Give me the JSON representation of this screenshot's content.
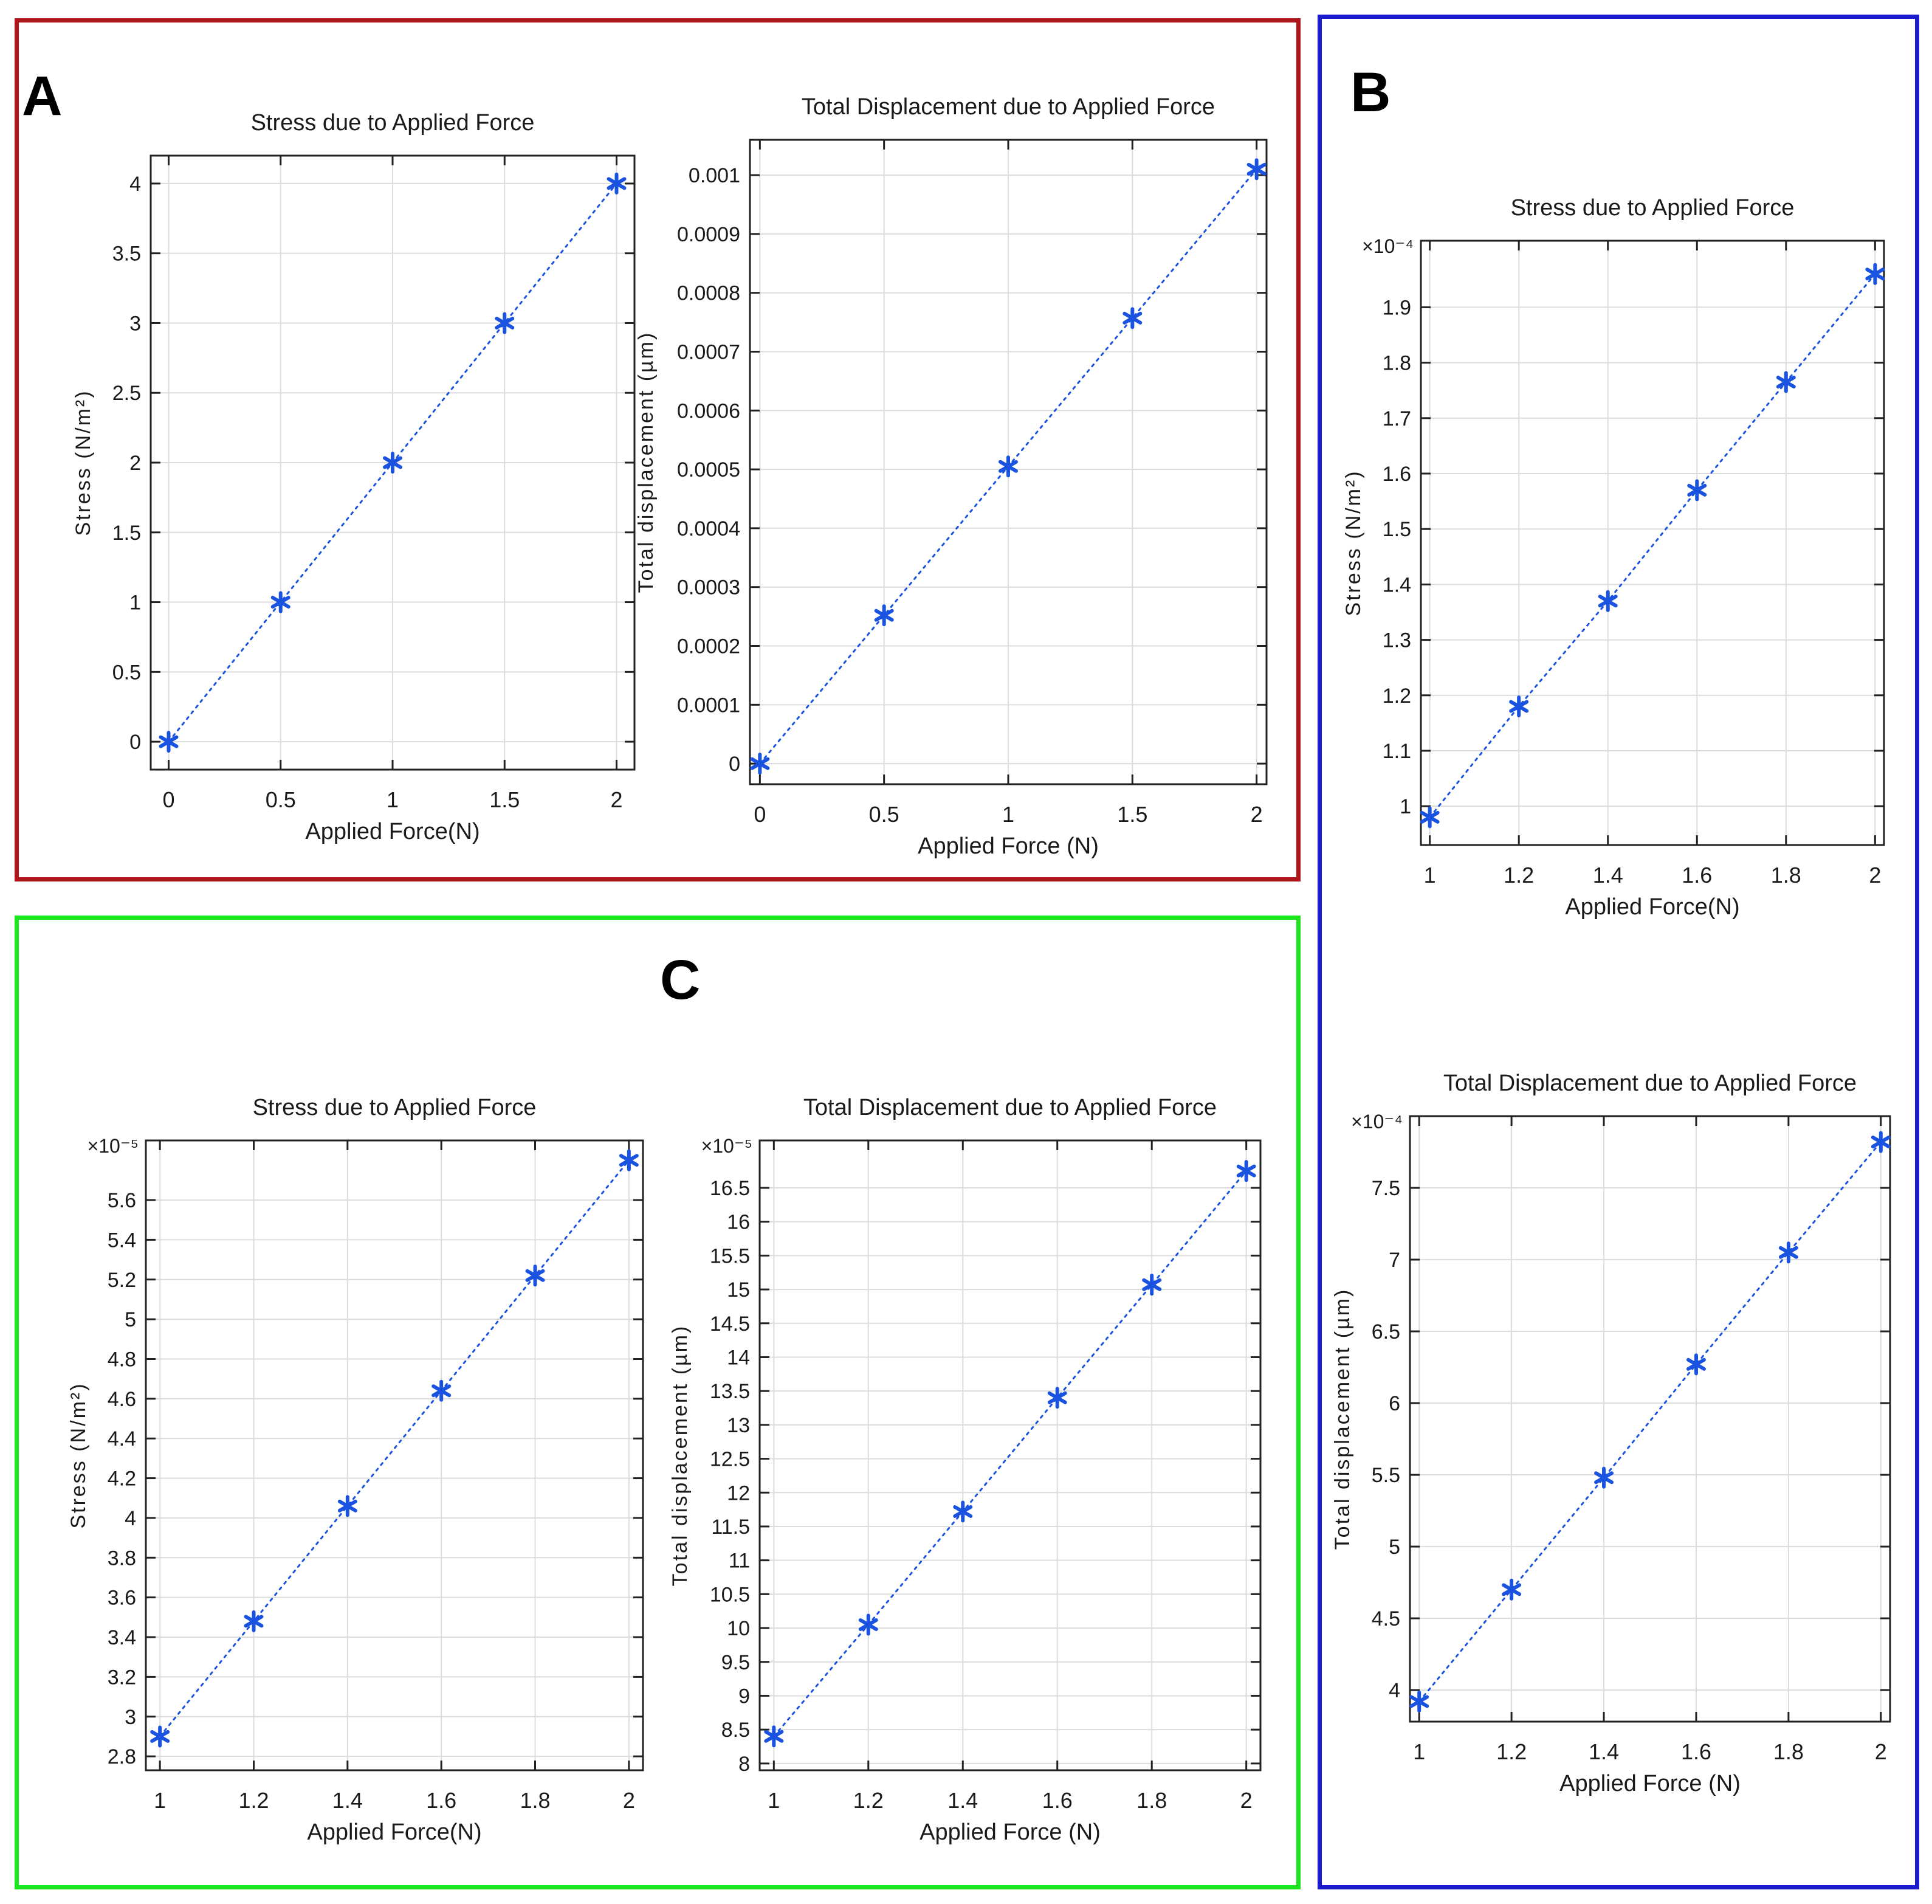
{
  "colors": {
    "panel_a": "#b0151c",
    "panel_b": "#1c1ccc",
    "panel_c": "#1ee61e",
    "series": "#1a53e0"
  },
  "panels": {
    "a": "A",
    "b": "B",
    "c": "C"
  },
  "chart_data": [
    {
      "id": "a1",
      "type": "line",
      "marker": "asterisk",
      "line_style": "dotted",
      "title": "Stress due to Applied Force",
      "xlabel": "Applied Force(N)",
      "ylabel": "Stress (N/m²)",
      "exponent": "",
      "x": [
        0,
        0.5,
        1,
        1.5,
        2
      ],
      "y": [
        0,
        1,
        2,
        3,
        4
      ],
      "xlim": [
        -0.08,
        2.08
      ],
      "ylim": [
        -0.2,
        4.2
      ],
      "xticks": [
        0,
        0.5,
        1,
        1.5,
        2
      ],
      "xtick_labels": [
        "0",
        "0.5",
        "1",
        "1.5",
        "2"
      ],
      "yticks": [
        0,
        0.5,
        1,
        1.5,
        2,
        2.5,
        3,
        3.5,
        4
      ],
      "ytick_labels": [
        "0",
        "0.5",
        "1",
        "1.5",
        "2",
        "2.5",
        "3",
        "3.5",
        "4"
      ],
      "grid": true
    },
    {
      "id": "a2",
      "type": "line",
      "marker": "asterisk",
      "line_style": "dotted",
      "title": "Total Displacement due to Applied Force",
      "xlabel": "Applied Force (N)",
      "ylabel": "Total displacement (µm)",
      "exponent": "",
      "x": [
        0,
        0.5,
        1,
        1.5,
        2
      ],
      "y": [
        0,
        0.000252,
        0.000505,
        0.000757,
        0.00101
      ],
      "xlim": [
        -0.04,
        2.04
      ],
      "ylim": [
        -3.5e-05,
        0.00106
      ],
      "xticks": [
        0,
        0.5,
        1,
        1.5,
        2
      ],
      "xtick_labels": [
        "0",
        "0.5",
        "1",
        "1.5",
        "2"
      ],
      "yticks": [
        0,
        0.0001,
        0.0002,
        0.0003,
        0.0004,
        0.0005,
        0.0006,
        0.0007,
        0.0008,
        0.0009,
        0.001
      ],
      "ytick_labels": [
        "0",
        "0.0001",
        "0.0002",
        "0.0003",
        "0.0004",
        "0.0005",
        "0.0006",
        "0.0007",
        "0.0008",
        "0.0009",
        "0.001"
      ],
      "grid": true
    },
    {
      "id": "b1",
      "type": "line",
      "marker": "asterisk",
      "line_style": "dotted",
      "title": "Stress due to Applied Force",
      "xlabel": "Applied Force(N)",
      "ylabel": "Stress (N/m²)",
      "exponent": "×10⁻⁴",
      "x": [
        1,
        1.2,
        1.4,
        1.6,
        1.8,
        2
      ],
      "y": [
        0.98,
        1.18,
        1.37,
        1.57,
        1.765,
        1.96
      ],
      "xlim": [
        0.98,
        2.02
      ],
      "ylim": [
        0.93,
        2.02
      ],
      "xticks": [
        1,
        1.2,
        1.4,
        1.6,
        1.8,
        2
      ],
      "xtick_labels": [
        "1",
        "1.2",
        "1.4",
        "1.6",
        "1.8",
        "2"
      ],
      "yticks": [
        1,
        1.1,
        1.2,
        1.3,
        1.4,
        1.5,
        1.6,
        1.7,
        1.8,
        1.9
      ],
      "ytick_labels": [
        "1",
        "1.1",
        "1.2",
        "1.3",
        "1.4",
        "1.5",
        "1.6",
        "1.7",
        "1.8",
        "1.9"
      ],
      "grid": true
    },
    {
      "id": "b2",
      "type": "line",
      "marker": "asterisk",
      "line_style": "dotted",
      "title": "Total Displacement due to Applied Force",
      "xlabel": "Applied Force (N)",
      "ylabel": "Total displacement (µm)",
      "exponent": "×10⁻⁴",
      "x": [
        1,
        1.2,
        1.4,
        1.6,
        1.8,
        2
      ],
      "y": [
        3.92,
        4.7,
        5.48,
        6.27,
        7.05,
        7.82
      ],
      "xlim": [
        0.98,
        2.02
      ],
      "ylim": [
        3.78,
        8.0
      ],
      "xticks": [
        1,
        1.2,
        1.4,
        1.6,
        1.8,
        2
      ],
      "xtick_labels": [
        "1",
        "1.2",
        "1.4",
        "1.6",
        "1.8",
        "2"
      ],
      "yticks": [
        4,
        4.5,
        5,
        5.5,
        6,
        6.5,
        7,
        7.5
      ],
      "ytick_labels": [
        "4",
        "4.5",
        "5",
        "5.5",
        "6",
        "6.5",
        "7",
        "7.5"
      ],
      "grid": true
    },
    {
      "id": "c1",
      "type": "line",
      "marker": "asterisk",
      "line_style": "dotted",
      "title": "Stress due to Applied Force",
      "xlabel": "Applied Force(N)",
      "ylabel": "Stress (N/m²)",
      "exponent": "×10⁻⁵",
      "x": [
        1,
        1.2,
        1.4,
        1.6,
        1.8,
        2
      ],
      "y": [
        2.9,
        3.48,
        4.06,
        4.64,
        5.22,
        5.8
      ],
      "xlim": [
        0.97,
        2.03
      ],
      "ylim": [
        2.73,
        5.9
      ],
      "xticks": [
        1,
        1.2,
        1.4,
        1.6,
        1.8,
        2
      ],
      "xtick_labels": [
        "1",
        "1.2",
        "1.4",
        "1.6",
        "1.8",
        "2"
      ],
      "yticks": [
        2.8,
        3,
        3.2,
        3.4,
        3.6,
        3.8,
        4,
        4.2,
        4.4,
        4.6,
        4.8,
        5,
        5.2,
        5.4,
        5.6
      ],
      "ytick_labels": [
        "2.8",
        "3",
        "3.2",
        "3.4",
        "3.6",
        "3.8",
        "4",
        "4.2",
        "4.4",
        "4.6",
        "4.8",
        "5",
        "5.2",
        "5.4",
        "5.6"
      ],
      "grid": true
    },
    {
      "id": "c2",
      "type": "line",
      "marker": "asterisk",
      "line_style": "dotted",
      "title": "Total Displacement due to Applied Force",
      "xlabel": "Applied Force (N)",
      "ylabel": "Total displacement (µm)",
      "exponent": "×10⁻⁵",
      "x": [
        1,
        1.2,
        1.4,
        1.6,
        1.8,
        2
      ],
      "y": [
        8.4,
        10.05,
        11.72,
        13.4,
        15.07,
        16.75
      ],
      "xlim": [
        0.97,
        2.03
      ],
      "ylim": [
        7.9,
        17.2
      ],
      "xticks": [
        1,
        1.2,
        1.4,
        1.6,
        1.8,
        2
      ],
      "xtick_labels": [
        "1",
        "1.2",
        "1.4",
        "1.6",
        "1.8",
        "2"
      ],
      "yticks": [
        8,
        8.5,
        9,
        9.5,
        10,
        10.5,
        11,
        11.5,
        12,
        12.5,
        13,
        13.5,
        14,
        14.5,
        15,
        15.5,
        16,
        16.5
      ],
      "ytick_labels": [
        "8",
        "8.5",
        "9",
        "9.5",
        "10",
        "10.5",
        "11",
        "11.5",
        "12",
        "12.5",
        "13",
        "13.5",
        "14",
        "14.5",
        "15",
        "15.5",
        "16",
        "16.5"
      ],
      "grid": true
    }
  ]
}
